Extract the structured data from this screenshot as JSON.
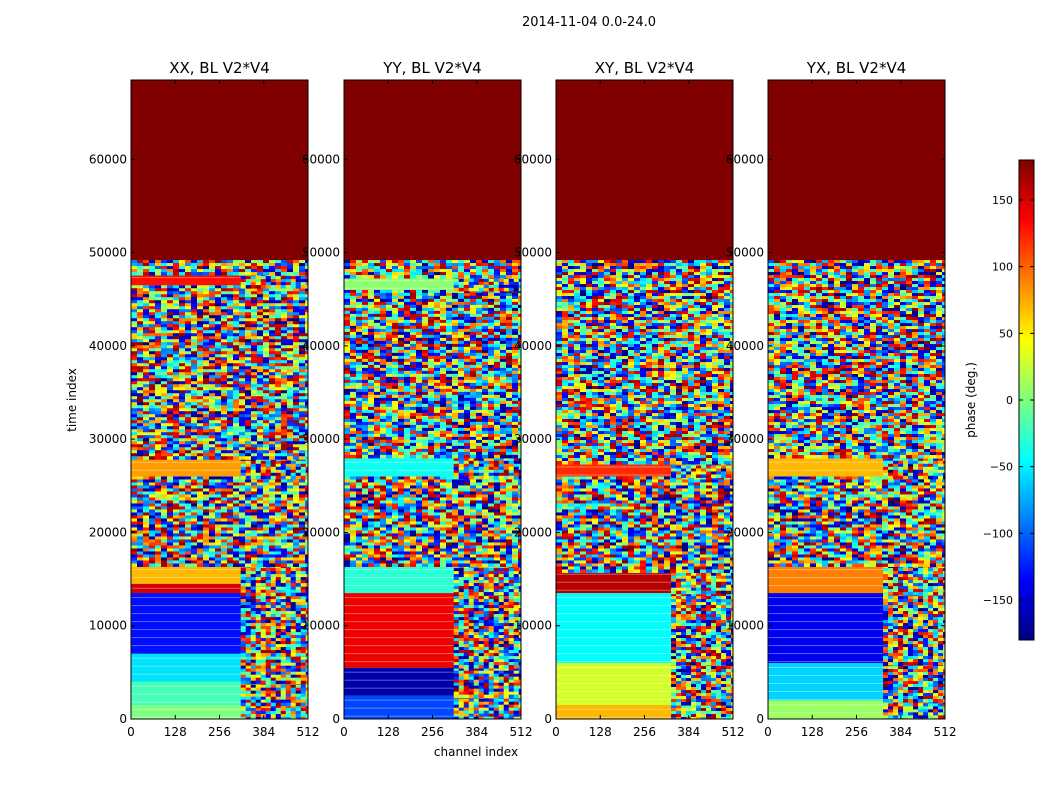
{
  "figure": {
    "suptitle": "2014-11-04 0.0-24.0",
    "xlabel": "channel index",
    "ylabel": "time index"
  },
  "colorbar": {
    "label": "phase (deg.)",
    "range": [
      -180,
      180
    ],
    "ticks": [
      -150,
      -100,
      -50,
      0,
      50,
      100,
      150
    ],
    "tick_labels": [
      "−150",
      "−100",
      "−50",
      "0",
      "50",
      "100",
      "150"
    ],
    "colors": [
      "#00007f",
      "#0000ff",
      "#007fff",
      "#00ffff",
      "#7fff7f",
      "#ffff00",
      "#ff7f00",
      "#ff0000",
      "#7f0000"
    ]
  },
  "chart_data": [
    {
      "type": "heatmap",
      "title": "XX, BL V2*V4",
      "xlabel": "",
      "ylabel": "time index",
      "xlim": [
        0,
        512
      ],
      "ylim": [
        0,
        68500
      ],
      "xticks": [
        0,
        128,
        256,
        384,
        512
      ],
      "yticks": [
        0,
        10000,
        20000,
        30000,
        40000,
        50000,
        60000
      ],
      "bands": [
        {
          "from": 0,
          "to": 1500,
          "phase": 0,
          "width": 0.62
        },
        {
          "from": 1500,
          "to": 4000,
          "phase": -20,
          "width": 0.62
        },
        {
          "from": 4000,
          "to": 7000,
          "phase": -55,
          "width": 0.62
        },
        {
          "from": 7000,
          "to": 13500,
          "phase": -130,
          "width": 0.62
        },
        {
          "from": 13500,
          "to": 14500,
          "phase": 150,
          "width": 0.62
        },
        {
          "from": 14500,
          "to": 16500,
          "phase": 70,
          "width": 0.62
        },
        {
          "from": 16500,
          "to": 26000,
          "phase": "noise",
          "width": 1
        },
        {
          "from": 26000,
          "to": 28000,
          "phase": 80,
          "width": 0.62
        },
        {
          "from": 28000,
          "to": 46500,
          "phase": "noise",
          "width": 1
        },
        {
          "from": 46500,
          "to": 47800,
          "phase": 130,
          "width": 0.62
        },
        {
          "from": 47800,
          "to": 49200,
          "phase": "noise",
          "width": 1
        },
        {
          "from": 49200,
          "to": 68500,
          "phase": 180,
          "width": 1
        }
      ]
    },
    {
      "type": "heatmap",
      "title": "YY, BL V2*V4",
      "xlabel": "channel index",
      "ylabel": "",
      "xlim": [
        0,
        512
      ],
      "ylim": [
        0,
        68500
      ],
      "xticks": [
        0,
        128,
        256,
        384,
        512
      ],
      "yticks": [
        0,
        10000,
        20000,
        30000,
        40000,
        50000,
        60000
      ],
      "bands": [
        {
          "from": 0,
          "to": 2500,
          "phase": -110,
          "width": 0.62
        },
        {
          "from": 2500,
          "to": 5500,
          "phase": -165,
          "width": 0.62
        },
        {
          "from": 5500,
          "to": 13500,
          "phase": 140,
          "width": 0.62
        },
        {
          "from": 13500,
          "to": 16500,
          "phase": -30,
          "width": 0.62
        },
        {
          "from": 16500,
          "to": 26000,
          "phase": "noise",
          "width": 1
        },
        {
          "from": 26000,
          "to": 28000,
          "phase": -40,
          "width": 0.62
        },
        {
          "from": 28000,
          "to": 46000,
          "phase": "noise",
          "width": 1
        },
        {
          "from": 46000,
          "to": 47500,
          "phase": 5,
          "width": 0.62
        },
        {
          "from": 47500,
          "to": 49200,
          "phase": "noise",
          "width": 1
        },
        {
          "from": 49200,
          "to": 68500,
          "phase": 180,
          "width": 1
        }
      ]
    },
    {
      "type": "heatmap",
      "title": "XY, BL V2*V4",
      "xlabel": "",
      "ylabel": "",
      "xlim": [
        0,
        512
      ],
      "ylim": [
        0,
        68500
      ],
      "xticks": [
        0,
        128,
        256,
        384,
        512
      ],
      "yticks": [
        0,
        10000,
        20000,
        30000,
        40000,
        50000,
        60000
      ],
      "bands": [
        {
          "from": 0,
          "to": 1500,
          "phase": 70,
          "width": 0.65
        },
        {
          "from": 1500,
          "to": 6000,
          "phase": 30,
          "width": 0.65
        },
        {
          "from": 6000,
          "to": 13500,
          "phase": -45,
          "width": 0.65
        },
        {
          "from": 13500,
          "to": 16000,
          "phase": 160,
          "width": 0.65
        },
        {
          "from": 16000,
          "to": 26000,
          "phase": "noise",
          "width": 1
        },
        {
          "from": 26000,
          "to": 27500,
          "phase": 120,
          "width": 0.65
        },
        {
          "from": 27500,
          "to": 49200,
          "phase": "noise",
          "width": 1
        },
        {
          "from": 49200,
          "to": 68500,
          "phase": 180,
          "width": 1
        }
      ]
    },
    {
      "type": "heatmap",
      "title": "YX, BL V2*V4",
      "xlabel": "",
      "ylabel": "",
      "xlim": [
        0,
        512
      ],
      "ylim": [
        0,
        68500
      ],
      "xticks": [
        0,
        128,
        256,
        384,
        512
      ],
      "yticks": [
        0,
        10000,
        20000,
        30000,
        40000,
        50000,
        60000
      ],
      "bands": [
        {
          "from": 0,
          "to": 2000,
          "phase": 10,
          "width": 0.65
        },
        {
          "from": 2000,
          "to": 6000,
          "phase": -60,
          "width": 0.65
        },
        {
          "from": 6000,
          "to": 13500,
          "phase": -140,
          "width": 0.65
        },
        {
          "from": 13500,
          "to": 16500,
          "phase": 90,
          "width": 0.65
        },
        {
          "from": 16500,
          "to": 26000,
          "phase": "noise",
          "width": 1
        },
        {
          "from": 26000,
          "to": 28000,
          "phase": 70,
          "width": 0.65
        },
        {
          "from": 28000,
          "to": 49200,
          "phase": "noise",
          "width": 1
        },
        {
          "from": 49200,
          "to": 68500,
          "phase": 180,
          "width": 1
        }
      ]
    }
  ]
}
